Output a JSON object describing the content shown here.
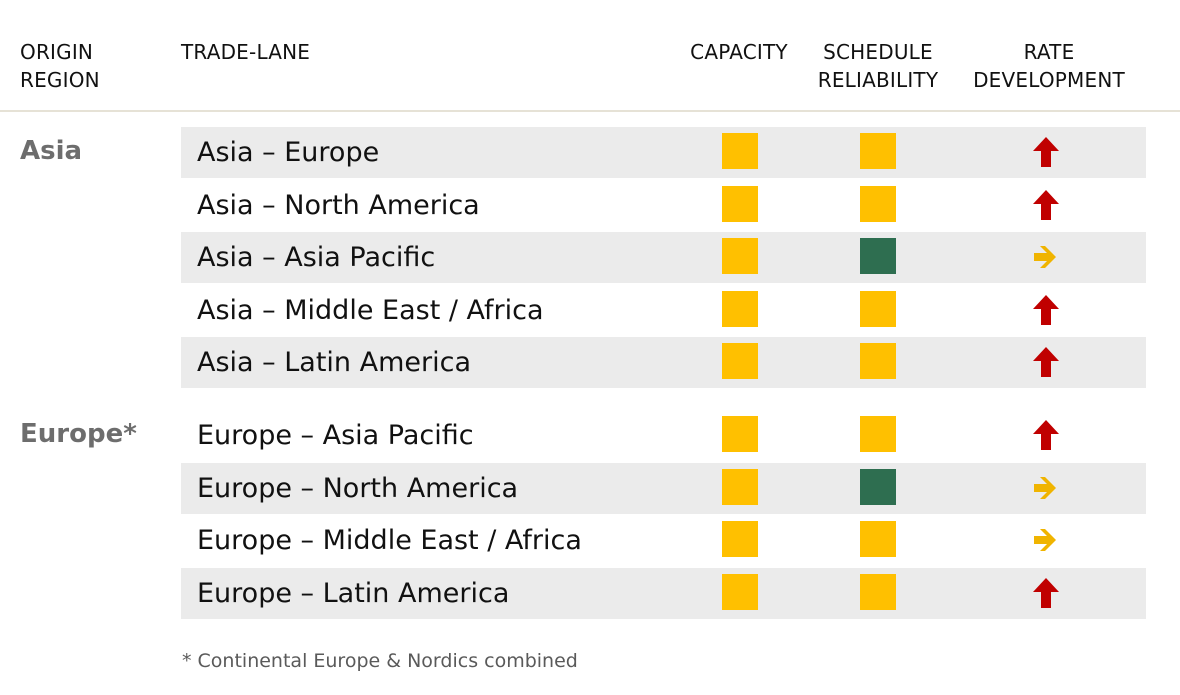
{
  "headers": {
    "origin_line1": "ORIGIN",
    "origin_line2": "REGION",
    "lane": "TRADE-LANE",
    "capacity": "CAPACITY",
    "schedule_line1": "SCHEDULE",
    "schedule_line2": "RELIABILITY",
    "rate_line1": "RATE",
    "rate_line2": "DEVELOPMENT"
  },
  "colors": {
    "amber": "#ffc000",
    "green": "#2e6e50",
    "arrow_up": "#c00000",
    "arrow_right": "#f0b400"
  },
  "regions": [
    {
      "name": "Asia",
      "rows": [
        {
          "lane": "Asia – Europe",
          "capacity": "amber",
          "schedule": "amber",
          "rate": "up"
        },
        {
          "lane": "Asia – North America",
          "capacity": "amber",
          "schedule": "amber",
          "rate": "up"
        },
        {
          "lane": "Asia – Asia Pacific",
          "capacity": "amber",
          "schedule": "green",
          "rate": "flat"
        },
        {
          "lane": "Asia – Middle East / Africa",
          "capacity": "amber",
          "schedule": "amber",
          "rate": "up"
        },
        {
          "lane": "Asia – Latin America",
          "capacity": "amber",
          "schedule": "amber",
          "rate": "up"
        }
      ]
    },
    {
      "name": "Europe*",
      "rows": [
        {
          "lane": "Europe – Asia Pacific",
          "capacity": "amber",
          "schedule": "amber",
          "rate": "up"
        },
        {
          "lane": "Europe – North America",
          "capacity": "amber",
          "schedule": "green",
          "rate": "flat"
        },
        {
          "lane": "Europe – Middle East / Africa",
          "capacity": "amber",
          "schedule": "amber",
          "rate": "flat"
        },
        {
          "lane": "Europe – Latin America",
          "capacity": "amber",
          "schedule": "amber",
          "rate": "up"
        }
      ]
    }
  ],
  "footnote": "* Continental Europe & Nordics combined"
}
